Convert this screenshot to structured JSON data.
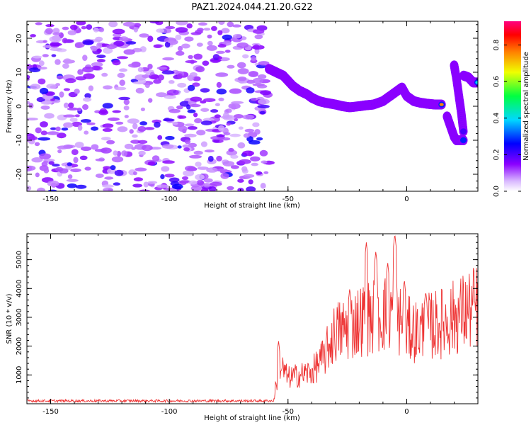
{
  "title": "PAZ1.2024.044.21.20.G22",
  "chart_data": [
    {
      "type": "heatmap",
      "xlabel": "Height of straight line (km)",
      "ylabel": "Frequency (Hz)",
      "xlim": [
        -160,
        30
      ],
      "ylim": [
        -25,
        25
      ],
      "xticks": [
        -150,
        -100,
        -50,
        0
      ],
      "xtick_labels": [
        "-150",
        "-100",
        "-50",
        "0"
      ],
      "yticks": [
        -20,
        -10,
        0,
        10,
        20
      ],
      "ytick_labels": [
        "-20",
        "-10",
        "0",
        "10",
        "20"
      ],
      "colorbar": {
        "label": "Normalized spectral amplitude",
        "range": [
          0,
          0.93
        ],
        "ticks": [
          0.0,
          0.2,
          0.4,
          0.6,
          0.8
        ],
        "tick_labels": [
          "0.0",
          "0.2",
          "0.4",
          "0.6",
          "0.8"
        ],
        "colormap": "gist_rainbow-like (white→violet→blue→cyan→green→yellow→red→pink)"
      },
      "noise_region_x": [
        -160,
        -58
      ],
      "ridge": {
        "x": [
          -58,
          -55,
          -52,
          -50,
          -48,
          -45,
          -42,
          -40,
          -37,
          -34,
          -30,
          -27,
          -24,
          -20,
          -17,
          -14,
          -10,
          -7,
          -4,
          -2,
          0,
          3,
          6,
          9,
          12,
          15
        ],
        "freq": [
          11,
          10,
          9,
          7.5,
          6,
          4.5,
          3.5,
          2.5,
          1.5,
          1,
          0.5,
          0,
          -0.3,
          0,
          0.3,
          0.5,
          1.5,
          3,
          4.5,
          5.5,
          3,
          1.5,
          1,
          0.7,
          0.5,
          0.5
        ]
      },
      "segment_b": {
        "x": [
          17,
          18,
          19,
          20,
          21,
          22,
          23,
          24
        ],
        "freq": [
          -3,
          -5,
          -7,
          -9,
          -10,
          -10,
          -10,
          -10
        ]
      },
      "segment_c": {
        "x": [
          20,
          21,
          22,
          23,
          24
        ],
        "freq": [
          12,
          8,
          3,
          -2,
          -8
        ]
      },
      "segment_d": {
        "x": [
          24,
          26,
          28,
          30
        ],
        "freq": [
          9,
          8.5,
          7,
          7
        ]
      }
    },
    {
      "type": "line",
      "xlabel": "Height of straight line (km)",
      "ylabel": "SNR (10 * v/v)",
      "xlim": [
        -160,
        30
      ],
      "ylim": [
        0,
        5900
      ],
      "xticks": [
        -150,
        -100,
        -50,
        0
      ],
      "xtick_labels": [
        "-150",
        "-100",
        "-50",
        "0"
      ],
      "yticks": [
        1000,
        2000,
        3000,
        4000,
        5000
      ],
      "ytick_labels": [
        "1000",
        "2000",
        "3000",
        "4000",
        "5000"
      ],
      "color": "#ee3333",
      "envelope": {
        "x": [
          -160,
          -56,
          -55,
          -53,
          -50,
          -45,
          -40,
          -35,
          -30,
          -25,
          -20,
          -15,
          -10,
          -7,
          -5,
          -3,
          0,
          5,
          10,
          15,
          20,
          25,
          30
        ],
        "y": [
          100,
          100,
          700,
          1300,
          900,
          1000,
          1100,
          1600,
          2500,
          2600,
          2900,
          3000,
          3100,
          3200,
          3300,
          2900,
          2600,
          2500,
          2700,
          2800,
          3000,
          3200,
          3400
        ]
      },
      "peaks": [
        {
          "x": -54,
          "y": 2200
        },
        {
          "x": -24,
          "y": 4000
        },
        {
          "x": -17,
          "y": 5600
        },
        {
          "x": -13,
          "y": 5300
        },
        {
          "x": -8,
          "y": 4900
        },
        {
          "x": -5,
          "y": 5900
        },
        {
          "x": -1,
          "y": 4300
        },
        {
          "x": 8,
          "y": 3900
        }
      ]
    }
  ]
}
